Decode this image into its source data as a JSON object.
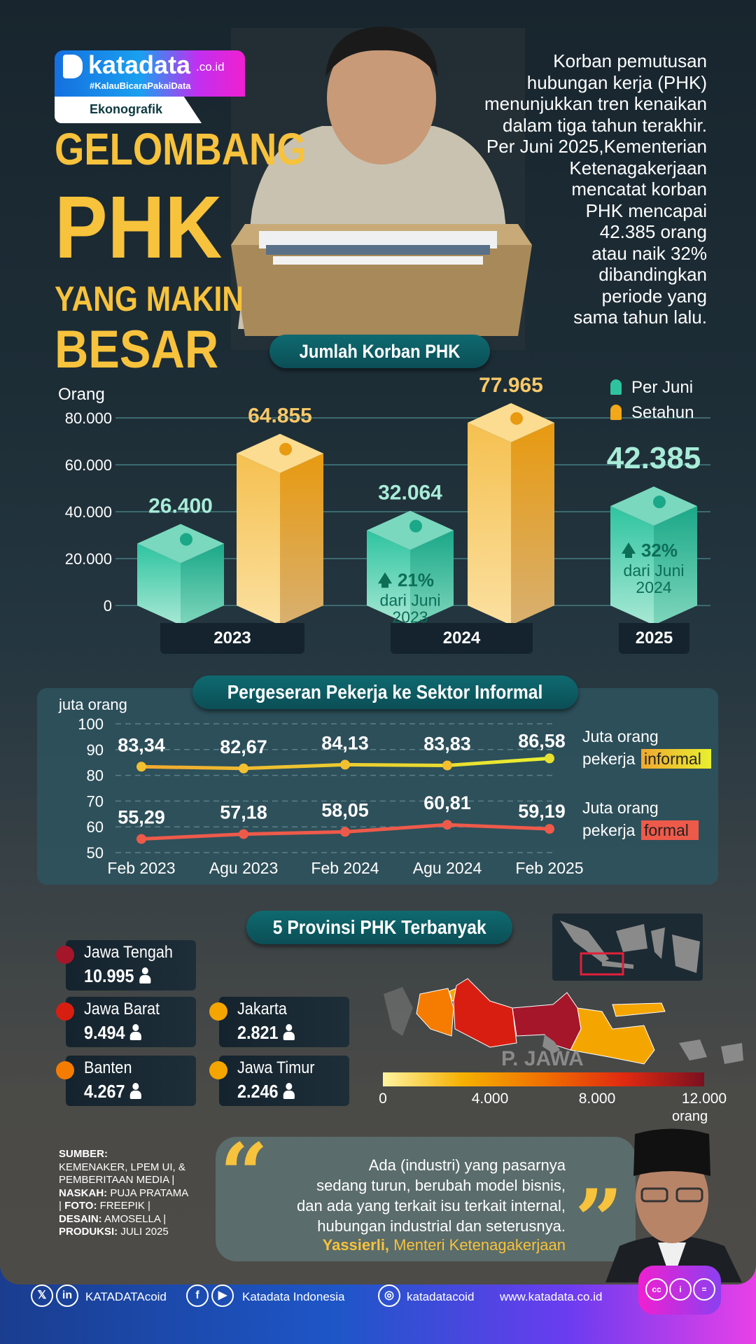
{
  "brand": {
    "logo_text": "katadata",
    "domain": ".co.id",
    "tagline": "#KalauBicaraPakaiData",
    "section": "Ekonografik",
    "gradient": [
      "#1570e0",
      "#f020d0"
    ]
  },
  "title": {
    "line1": "GELOMBANG",
    "line2": "PHK",
    "line3": "YANG MAKIN",
    "line4": "BESAR",
    "color": "#f7c23c"
  },
  "intro": [
    "Korban pemutusan",
    "hubungan kerja (PHK)",
    "menunjukkan tren kenaikan",
    "dalam tiga tahun terakhir.",
    "Per Juni 2025,Kementerian",
    "Ketenagakerjaan",
    "mencatat korban",
    "PHK mencapai",
    "42.385 orang",
    "atau naik 32%",
    "dibandingkan",
    "periode yang",
    "sama tahun lalu."
  ],
  "chart_data": [
    {
      "type": "bar",
      "title": "Jumlah Korban PHK",
      "ylabel": "Orang",
      "ylim": [
        0,
        80000
      ],
      "yticks": [
        "0",
        "20.000",
        "40.000",
        "60.000",
        "80.000"
      ],
      "grid": true,
      "legend_position": "top-right",
      "categories": [
        "2023",
        "2024",
        "2025"
      ],
      "series": [
        {
          "name": "Per Juni",
          "color": "#2ec4a0",
          "values": [
            26400,
            32064,
            42385
          ],
          "labels": [
            "26.400",
            "32.064",
            "42.385"
          ]
        },
        {
          "name": "Setahun",
          "color": "#f2a818",
          "values": [
            64855,
            77965,
            null
          ],
          "labels": [
            "64.855",
            "77.965",
            ""
          ]
        }
      ],
      "annotations": [
        {
          "category": "2024",
          "change": "21%",
          "text1": "dari Juni",
          "text2": "2023"
        },
        {
          "category": "2025",
          "change": "32%",
          "text1": "dari Juni",
          "text2": "2024"
        }
      ]
    },
    {
      "type": "line",
      "title": "Pergeseran Pekerja ke Sektor Informal",
      "ylabel": "juta orang",
      "ylim": [
        50,
        100
      ],
      "yticks": [
        "50",
        "60",
        "70",
        "80",
        "90",
        "100"
      ],
      "grid": true,
      "x": [
        "Feb 2023",
        "Agu 2023",
        "Feb 2024",
        "Agu 2024",
        "Feb 2025"
      ],
      "series": [
        {
          "name_prefix": "Juta orang",
          "name_line2": "pekerja",
          "name_highlight": "informal",
          "color": "#f4c030",
          "values": [
            83.34,
            82.67,
            84.13,
            83.83,
            86.58
          ],
          "labels": [
            "83,34",
            "82,67",
            "84,13",
            "83,83",
            "86,58"
          ]
        },
        {
          "name_prefix": "Juta orang",
          "name_line2": "pekerja",
          "name_highlight": "formal",
          "color": "#ee5a4a",
          "values": [
            55.29,
            57.18,
            58.05,
            60.81,
            59.19
          ],
          "labels": [
            "55,29",
            "57,18",
            "58,05",
            "60,81",
            "59,19"
          ]
        }
      ]
    }
  ],
  "provinces": {
    "title": "5 Provinsi PHK Terbanyak",
    "items": [
      {
        "name": "Jawa Tengah",
        "value": "10.995",
        "color": "#a5162a"
      },
      {
        "name": "Jawa Barat",
        "value": "9.494",
        "color": "#d81e10"
      },
      {
        "name": "Banten",
        "value": "4.267",
        "color": "#f57c00"
      },
      {
        "name": "Jakarta",
        "value": "2.821",
        "color": "#f5a500"
      },
      {
        "name": "Jawa Timur",
        "value": "2.246",
        "color": "#f5a500"
      }
    ],
    "map_label": "P. JAWA",
    "legend": {
      "ticks": [
        "0",
        "4.000",
        "8.000",
        "12.000"
      ],
      "unit": "orang",
      "colors": [
        "#fff3a0",
        "#f5b000",
        "#f07000",
        "#e02a10",
        "#7a1020"
      ]
    }
  },
  "sources": {
    "sumber_label": "SUMBER:",
    "sumber": "KEMENAKER, LPEM UI, & PEMBERITAAN MEDIA |",
    "naskah_label": "NASKAH:",
    "naskah": "PUJA PRATAMA |",
    "foto_label": "FOTO:",
    "foto": "FREEPIK |",
    "desain_label": "DESAIN:",
    "desain": "AMOSELLA |",
    "produksi_label": "PRODUKSI:",
    "produksi": "JULI 2025"
  },
  "quote": {
    "lines": [
      "Ada (industri) yang pasarnya",
      "sedang turun, berubah model bisnis,",
      "dan ada yang terkait isu terkait internal,",
      "hubungan industrial dan seterusnya."
    ],
    "author": "Yassierli,",
    "role": "Menteri Ketenagakerjaan"
  },
  "footer": {
    "social1": "KATADATAcoid",
    "social2": "Katadata Indonesia",
    "social3": "katadatacoid",
    "website": "www.katadata.co.id",
    "icons": [
      "x-icon",
      "linkedin-icon",
      "facebook-icon",
      "youtube-icon",
      "instagram-icon",
      "cc-icon",
      "by-icon",
      "nd-icon"
    ]
  }
}
